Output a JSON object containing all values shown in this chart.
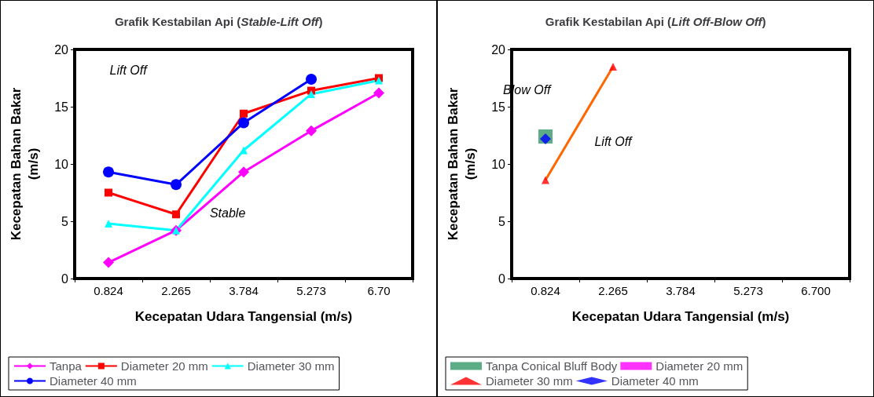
{
  "chart_data": [
    {
      "type": "line",
      "title": "Grafik Kestabilan Api (Stable-Lift Off)",
      "xlabel": "Kecepatan Udara Tangensial (m/s)",
      "ylabel": "Kecepatan Bahan Bakar (m/s)",
      "categories": [
        "0.824",
        "2.265",
        "3.784",
        "5.273",
        "6.70"
      ],
      "ylim": [
        0,
        20
      ],
      "yticks": [
        0,
        5,
        10,
        15,
        20
      ],
      "grid": false,
      "legend": "bottom",
      "annotations": [
        "Lift Off",
        "Stable"
      ],
      "series": [
        {
          "name": "Tanpa",
          "color": "#ff00ff",
          "marker": "diamond",
          "values": [
            1.4,
            4.2,
            9.3,
            12.9,
            16.2
          ]
        },
        {
          "name": "Diameter 20 mm",
          "color": "#ff0000",
          "marker": "square",
          "values": [
            7.5,
            5.6,
            14.4,
            16.4,
            17.5
          ]
        },
        {
          "name": "Diameter 30 mm",
          "color": "#00ffff",
          "marker": "triangle",
          "values": [
            4.8,
            4.2,
            11.2,
            16.1,
            17.3
          ]
        },
        {
          "name": "Diameter 40 mm",
          "color": "#0000ff",
          "marker": "circle",
          "values": [
            9.3,
            8.2,
            13.6,
            17.4,
            null
          ]
        }
      ]
    },
    {
      "type": "scatter",
      "title": "Grafik Kestabilan Api (Lift Off-Blow Off)",
      "xlabel": "Kecepatan Udara Tangensial (m/s)",
      "ylabel": "Kecepatan Bahan Bakar (m/s)",
      "categories": [
        "0.824",
        "2.265",
        "3.784",
        "5.273",
        "6.700"
      ],
      "ylim": [
        0,
        20
      ],
      "yticks": [
        0,
        5,
        10,
        15,
        20
      ],
      "grid": false,
      "legend": "bottom",
      "annotations": [
        "Blow Off",
        "Lift Off"
      ],
      "series": [
        {
          "name": "Tanpa Conical Bluff Body",
          "color": "#339966",
          "marker": "square",
          "values": [
            12.4,
            null,
            null,
            null,
            null
          ]
        },
        {
          "name": "Diameter 20 mm",
          "color": "#ff00ff",
          "marker": "square",
          "values": [
            null,
            null,
            null,
            null,
            null
          ]
        },
        {
          "name": "Diameter 30 mm",
          "color": "#ff0000",
          "marker": "triangle",
          "values": [
            8.6,
            18.5,
            null,
            null,
            null
          ]
        },
        {
          "name": "Diameter 40 mm",
          "color": "#0000ff",
          "marker": "diamond",
          "values": [
            12.2,
            null,
            null,
            null,
            null
          ]
        },
        {
          "type": "line",
          "color": "#ff6600",
          "marker": "none",
          "values": [
            8.6,
            18.5,
            null,
            null,
            null
          ]
        }
      ]
    }
  ]
}
